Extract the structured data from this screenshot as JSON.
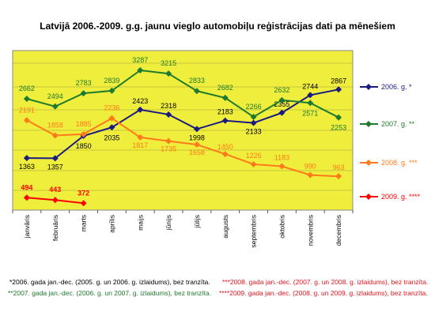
{
  "chart_data": {
    "type": "line",
    "title": "Latvijā 2006.-2009. g.g. jaunu vieglo automobiļu reģistrācijas dati pa mēnešiem",
    "categories": [
      "janvāris",
      "februāris",
      "marts",
      "aprīlis",
      "maijs",
      "jūnijs",
      "jūlijs",
      "augusts",
      "septembris",
      "oktobris",
      "novembris",
      "decembris"
    ],
    "ylim": [
      0,
      3600
    ],
    "grid": true,
    "legend_position": "right",
    "plot_background": "#f0ee3c",
    "series": [
      {
        "name": "2006. g. *",
        "color": "#1a1a80",
        "values": [
          1363,
          1357,
          1850,
          2035,
          2423,
          2318,
          1998,
          2183,
          2133,
          2355,
          2744,
          2867
        ]
      },
      {
        "name": "2007. g. **",
        "color": "#1e7a2e",
        "values": [
          2662,
          2494,
          2783,
          2839,
          3287,
          3215,
          2833,
          2682,
          2266,
          2632,
          2571,
          2253
        ]
      },
      {
        "name": "2008. g. ***",
        "color": "#ff7a1a",
        "values": [
          2191,
          1858,
          1885,
          2236,
          1817,
          1735,
          1658,
          1450,
          1226,
          1183,
          990,
          963
        ]
      },
      {
        "name": "2009. g. ****",
        "color": "#ff0000",
        "values": [
          494,
          443,
          372,
          null,
          null,
          null,
          null,
          null,
          null,
          null,
          null,
          null
        ]
      }
    ]
  },
  "footnotes": {
    "f1": "*2006. gada jan.-dec. (2005. g. un 2006. g. izlaidums), bez tranzīta.",
    "f2": "**2007. gada jan.-dec. (2006. g. un 2007. g. izlaidums), bez tranzīta.",
    "f3": "***2008. gada jan.-dec. (2007. g. un 2008. g. izlaidums), bez tranzīta.",
    "f4": "****2009. gada jan.-dec. (2008. g. un 2009. g. izlaidums), bez tranzīta."
  },
  "colors": {
    "footnote_left": "#000000",
    "footnote_green": "#1e7a2e",
    "footnote_right": "#e0141e"
  }
}
